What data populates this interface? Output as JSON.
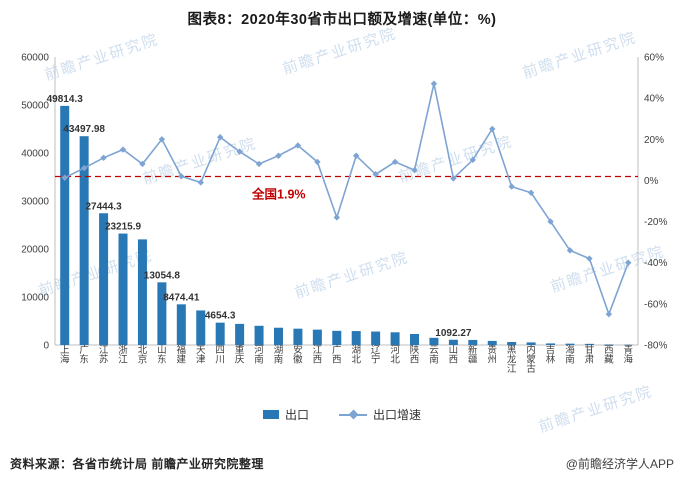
{
  "title": "图表8：2020年30省市出口额及增速(单位：%)",
  "watermark": {
    "text": "前瞻产业研究院"
  },
  "legend": {
    "items": [
      {
        "label": "出口"
      },
      {
        "label": "出口增速"
      }
    ]
  },
  "footer": {
    "source": "资料来源：各省市统计局 前瞻产业研究院整理",
    "credit": "@前瞻经济学人APP"
  },
  "colors": {
    "bar": "#2878B5",
    "line": "#7EA4D3",
    "reference": "#C00000",
    "axis_line": "#BFBFBF",
    "tick_text": "#404040",
    "bar_label_text": "#333333"
  },
  "chart_data": {
    "type": "bar",
    "subtype": "bar+line-combo",
    "title": "图表8：2020年30省市出口额及增速(单位：%)",
    "categories": [
      "上海",
      "广东",
      "江苏",
      "浙江",
      "北京",
      "山东",
      "福建",
      "天津",
      "四川",
      "重庆",
      "河南",
      "湖南",
      "安徽",
      "江西",
      "广西",
      "湖北",
      "辽宁",
      "河北",
      "陕西",
      "云南",
      "山西",
      "新疆",
      "贵州",
      "黑龙江",
      "内蒙古",
      "吉林",
      "海南",
      "甘肃",
      "西藏",
      "青海"
    ],
    "series": [
      {
        "name": "出口",
        "type": "bar",
        "axis": "left",
        "values": [
          49814.3,
          43497.98,
          27444.3,
          23215.9,
          22000,
          13054.8,
          8474.41,
          7200,
          4654.3,
          4400,
          4000,
          3600,
          3400,
          3200,
          2950,
          2900,
          2800,
          2650,
          2300,
          1500,
          1092.27,
          1050,
          850,
          620,
          540,
          330,
          280,
          240,
          110,
          60
        ]
      },
      {
        "name": "出口增速",
        "type": "line",
        "axis": "right",
        "values": [
          1.3,
          6,
          11,
          15,
          8,
          20,
          2,
          -1,
          21,
          14,
          8,
          12,
          17,
          9,
          -18,
          12,
          3,
          9,
          5,
          47,
          1,
          10,
          25,
          -3,
          -6,
          -20,
          -34,
          -38,
          -65,
          -40
        ]
      }
    ],
    "bar_value_labels": [
      {
        "category": "上海",
        "text": "49814.3"
      },
      {
        "category": "广东",
        "text": "43497.98"
      },
      {
        "category": "江苏",
        "text": "27444.3"
      },
      {
        "category": "浙江",
        "text": "23215.9"
      },
      {
        "category": "山东",
        "text": "13054.8"
      },
      {
        "category": "福建",
        "text": "8474.41"
      },
      {
        "category": "四川",
        "text": "4654.3"
      },
      {
        "category": "山西",
        "text": "1092.27"
      }
    ],
    "left_axis": {
      "min": 0,
      "max": 60000,
      "step": 10000
    },
    "right_axis": {
      "min": -80,
      "max": 60,
      "step": 20,
      "suffix": "%"
    },
    "reference_line": {
      "value": 1.9,
      "prefix": "全国",
      "text": "1.9%"
    },
    "legend_position": "bottom",
    "grid": false
  }
}
